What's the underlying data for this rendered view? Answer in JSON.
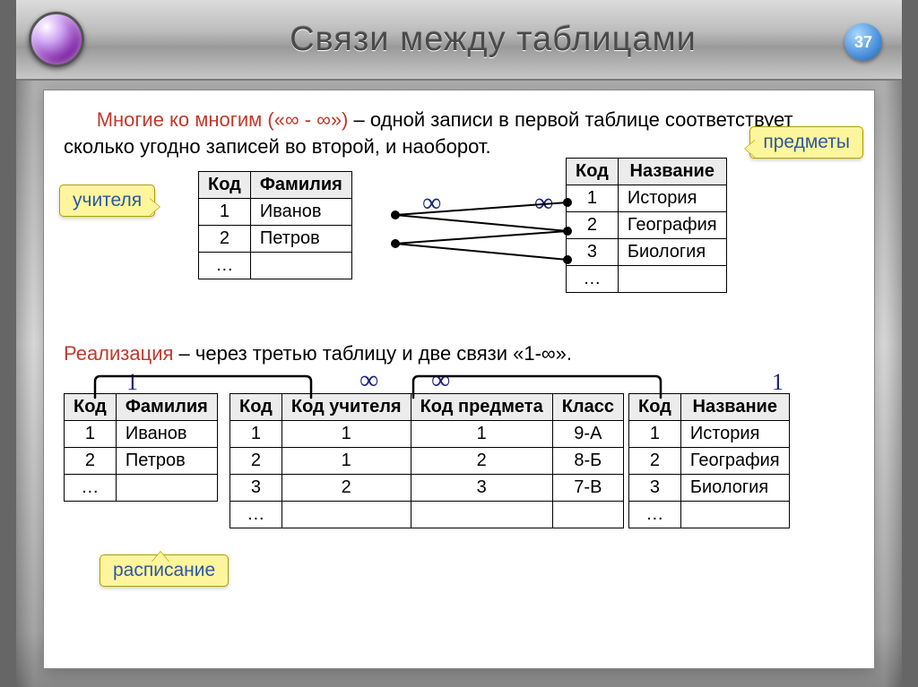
{
  "title": "Связи между таблицами",
  "slide_number": "37",
  "intro": {
    "highlight": "Многие ко многим («∞ - ∞»)",
    "rest": " – одной записи в первой таблице соответствует сколько угодно записей во второй, и наоборот."
  },
  "realization": {
    "highlight": "Реализация",
    "rest": " – через третью таблицу и две связи «1-∞»."
  },
  "callouts": {
    "teachers": "учителя",
    "subjects": "предметы",
    "schedule": "расписание"
  },
  "symbols": {
    "inf": "∞",
    "one": "1"
  },
  "teachers_table": {
    "columns": [
      "Код",
      "Фамилия"
    ],
    "rows": [
      [
        "1",
        "Иванов"
      ],
      [
        "2",
        "Петров"
      ],
      [
        "…",
        ""
      ]
    ]
  },
  "subjects_table": {
    "columns": [
      "Код",
      "Название"
    ],
    "rows": [
      [
        "1",
        "История"
      ],
      [
        "2",
        "География"
      ],
      [
        "3",
        "Биология"
      ],
      [
        "…",
        ""
      ]
    ]
  },
  "teachers_table2": {
    "columns": [
      "Код",
      "Фамилия"
    ],
    "rows": [
      [
        "1",
        "Иванов"
      ],
      [
        "2",
        "Петров"
      ],
      [
        "…",
        ""
      ]
    ]
  },
  "schedule_table": {
    "columns": [
      "Код",
      "Код учителя",
      "Код предмета",
      "Класс"
    ],
    "rows": [
      [
        "1",
        "1",
        "1",
        "9-А"
      ],
      [
        "2",
        "1",
        "2",
        "8-Б"
      ],
      [
        "3",
        "2",
        "3",
        "7-В"
      ],
      [
        "…",
        "",
        "",
        ""
      ]
    ]
  },
  "subjects_table2": {
    "columns": [
      "Код",
      "Название"
    ],
    "rows": [
      [
        "1",
        "История"
      ],
      [
        "2",
        "География"
      ],
      [
        "3",
        "Биология"
      ],
      [
        "…",
        ""
      ]
    ]
  },
  "colors": {
    "highlight": "#c0392b",
    "callout_bg": "#fff59d",
    "callout_border": "#b0a000",
    "symbol": "#1a237e",
    "link": "#000000"
  }
}
